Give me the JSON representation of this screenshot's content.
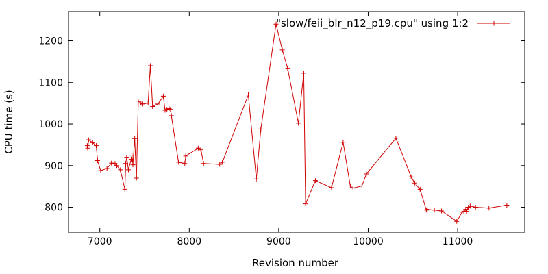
{
  "chart_data": {
    "type": "line",
    "xlabel": "Revision number",
    "ylabel": "CPU time (s)",
    "xlim": [
      6650,
      11750
    ],
    "ylim": [
      740,
      1270
    ],
    "x_ticks": [
      7000,
      8000,
      9000,
      10000,
      11000
    ],
    "y_ticks": [
      800,
      900,
      1000,
      1100,
      1200
    ],
    "grid": false,
    "legend_position": "top-right",
    "series": [
      {
        "name": "\"slow/feii_blr_n12_p19.cpu\" using 1:2",
        "color": "#d00000",
        "marker": "plus",
        "points": [
          [
            6860,
            948
          ],
          [
            6865,
            942
          ],
          [
            6875,
            962
          ],
          [
            6920,
            955
          ],
          [
            6960,
            948
          ],
          [
            6975,
            912
          ],
          [
            7010,
            888
          ],
          [
            7080,
            893
          ],
          [
            7130,
            906
          ],
          [
            7170,
            905
          ],
          [
            7190,
            900
          ],
          [
            7230,
            890
          ],
          [
            7280,
            843
          ],
          [
            7290,
            905
          ],
          [
            7300,
            920
          ],
          [
            7320,
            890
          ],
          [
            7350,
            915
          ],
          [
            7360,
            925
          ],
          [
            7370,
            902
          ],
          [
            7390,
            965
          ],
          [
            7410,
            870
          ],
          [
            7430,
            1055
          ],
          [
            7460,
            1050
          ],
          [
            7480,
            1048
          ],
          [
            7540,
            1050
          ],
          [
            7565,
            1140
          ],
          [
            7590,
            1042
          ],
          [
            7650,
            1048
          ],
          [
            7710,
            1067
          ],
          [
            7730,
            1033
          ],
          [
            7750,
            1035
          ],
          [
            7775,
            1037
          ],
          [
            7790,
            1035
          ],
          [
            7800,
            1020
          ],
          [
            7880,
            908
          ],
          [
            7950,
            905
          ],
          [
            7960,
            923
          ],
          [
            8100,
            942
          ],
          [
            8130,
            938
          ],
          [
            8160,
            905
          ],
          [
            8340,
            903
          ],
          [
            8370,
            908
          ],
          [
            8660,
            1070
          ],
          [
            8750,
            868
          ],
          [
            8800,
            988
          ],
          [
            8970,
            1240
          ],
          [
            9040,
            1178
          ],
          [
            9100,
            1134
          ],
          [
            9220,
            1002
          ],
          [
            9280,
            1122
          ],
          [
            9300,
            808
          ],
          [
            9410,
            864
          ],
          [
            9590,
            847
          ],
          [
            9720,
            956
          ],
          [
            9800,
            851
          ],
          [
            9830,
            846
          ],
          [
            9930,
            851
          ],
          [
            9980,
            880
          ],
          [
            10310,
            966
          ],
          [
            10480,
            873
          ],
          [
            10520,
            858
          ],
          [
            10580,
            843
          ],
          [
            10650,
            793
          ],
          [
            10660,
            795
          ],
          [
            10740,
            793
          ],
          [
            10820,
            791
          ],
          [
            10990,
            766
          ],
          [
            11050,
            788
          ],
          [
            11070,
            790
          ],
          [
            11090,
            795
          ],
          [
            11100,
            790
          ],
          [
            11120,
            800
          ],
          [
            11140,
            803
          ],
          [
            11200,
            800
          ],
          [
            11350,
            798
          ],
          [
            11550,
            805
          ]
        ]
      }
    ]
  }
}
